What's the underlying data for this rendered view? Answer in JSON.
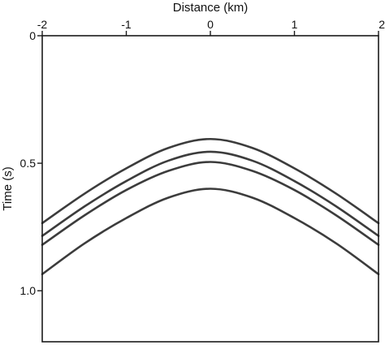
{
  "chart_data": {
    "type": "line",
    "title": "",
    "xlabel": "Distance (km)",
    "ylabel": "Time (s)",
    "x_axis_position": "top",
    "y_axis_inverted": true,
    "xlim": [
      -2,
      2
    ],
    "ylim": [
      0,
      1.2
    ],
    "x_ticks": [
      -2,
      -1,
      0,
      1,
      2
    ],
    "x_tick_labels": [
      "-2",
      "-1",
      "0",
      "1",
      "2"
    ],
    "y_ticks": [
      0,
      0.5,
      1.0
    ],
    "y_tick_labels": [
      "0",
      "0.5",
      "1.0"
    ],
    "grid": false,
    "legend": "none",
    "line_color": "#3c3c3c",
    "series": [
      {
        "x": [
          -2,
          -1.5,
          -1,
          -0.5,
          0,
          0.5,
          1,
          1.5,
          2
        ],
        "values": [
          0.735,
          0.62,
          0.52,
          0.44,
          0.405,
          0.44,
          0.52,
          0.62,
          0.735
        ]
      },
      {
        "x": [
          -2,
          -1.5,
          -1,
          -0.5,
          0,
          0.5,
          1,
          1.5,
          2
        ],
        "values": [
          0.785,
          0.67,
          0.57,
          0.49,
          0.455,
          0.49,
          0.57,
          0.67,
          0.785
        ]
      },
      {
        "x": [
          -2,
          -1.5,
          -1,
          -0.5,
          0,
          0.5,
          1,
          1.5,
          2
        ],
        "values": [
          0.82,
          0.705,
          0.605,
          0.53,
          0.495,
          0.53,
          0.605,
          0.705,
          0.82
        ]
      },
      {
        "x": [
          -2,
          -1.5,
          -1,
          -0.5,
          0,
          0.5,
          1,
          1.5,
          2
        ],
        "values": [
          0.935,
          0.815,
          0.715,
          0.635,
          0.6,
          0.635,
          0.715,
          0.815,
          0.935
        ]
      }
    ]
  }
}
